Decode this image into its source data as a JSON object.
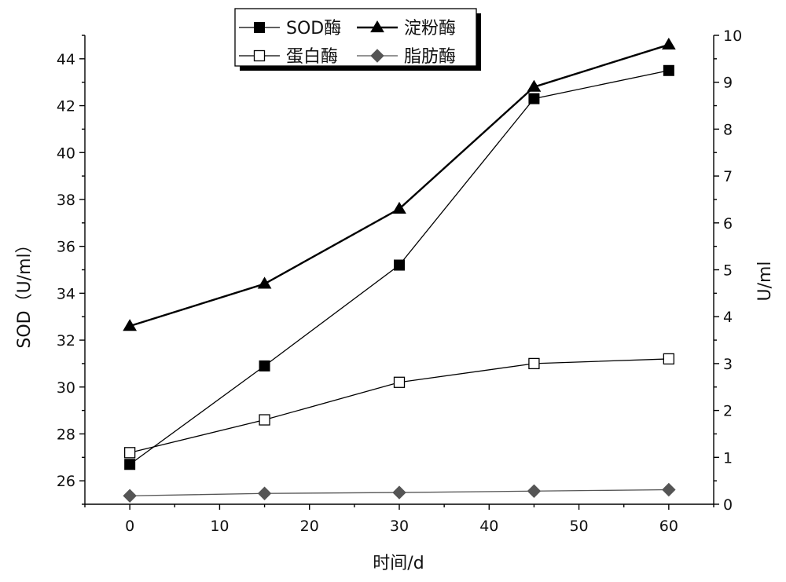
{
  "chart_data": {
    "type": "line",
    "x": [
      0,
      15,
      30,
      45,
      60
    ],
    "xlabel": "时间/d",
    "xlim": [
      -5,
      65
    ],
    "xticks": [
      0,
      10,
      20,
      30,
      40,
      50,
      60
    ],
    "ylabel_left": "SOD（U/ml）",
    "ylim_left": [
      25,
      45
    ],
    "yticks_left": [
      26,
      28,
      30,
      32,
      34,
      36,
      38,
      40,
      42,
      44
    ],
    "ylabel_right": "U/ml",
    "ylim_right": [
      0,
      10
    ],
    "yticks_right": [
      0,
      1,
      2,
      3,
      4,
      5,
      6,
      7,
      8,
      9,
      10
    ],
    "grid": false,
    "legend_position": "top",
    "series": [
      {
        "name": "SOD酶",
        "axis": "left",
        "marker": "filled-square",
        "values": [
          26.7,
          30.9,
          35.2,
          42.3,
          43.5
        ]
      },
      {
        "name": "淀粉酶",
        "axis": "right",
        "marker": "filled-triangle",
        "values": [
          3.8,
          4.7,
          6.3,
          8.9,
          9.8
        ]
      },
      {
        "name": "蛋白酶",
        "axis": "right",
        "marker": "open-square",
        "values": [
          1.1,
          1.8,
          2.6,
          3.0,
          3.1
        ]
      },
      {
        "name": "脂肪酶",
        "axis": "right",
        "marker": "filled-diamond",
        "values": [
          0.18,
          0.23,
          0.25,
          0.28,
          0.31
        ]
      }
    ]
  },
  "colors": {
    "line": "#000000",
    "diamond": "#555555",
    "axis": "#000000"
  }
}
